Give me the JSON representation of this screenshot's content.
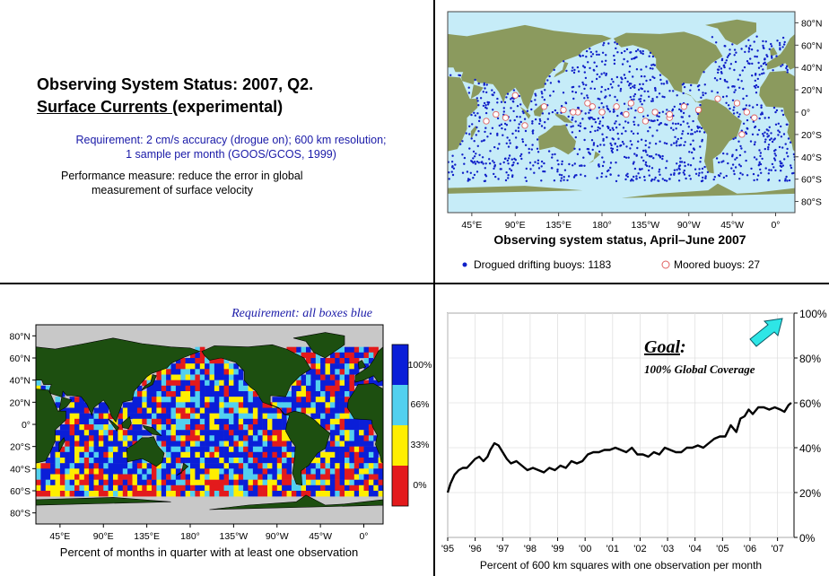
{
  "colors": {
    "ocean": "#c6ecf8",
    "land_map1": "#8b9a5e",
    "land_map2": "#1d4f10",
    "cell_blue": "#0a1ed8",
    "cell_cyan": "#52d0ef",
    "cell_yellow": "#ffee00",
    "cell_red": "#e31a1c",
    "buoy_blue": "#1020c8",
    "moored": "#e06060",
    "arrow": "#2ee6e6"
  },
  "text_panel": {
    "title_line1": "Observing System Status:  2007, Q2.",
    "title_line2_underlined": "Surface Currents ",
    "title_line2_rest": "(experimental)",
    "requirement_line1": "Requirement: 2 cm/s accuracy (drogue on); 600 km resolution;",
    "requirement_line2": "1 sample per month (GOOS/GCOS, 1999)",
    "performance_line1": "Performance measure: reduce the error in global",
    "performance_line2": "measurement of surface velocity"
  },
  "chart_data": [
    {
      "type": "scatter",
      "title": "Observing system status, April–June 2007",
      "x_ticks": [
        "45°E",
        "90°E",
        "135°E",
        "180°",
        "135°W",
        "90°W",
        "45°W",
        "0°"
      ],
      "y_ticks": [
        "80°N",
        "60°N",
        "40°N",
        "20°N",
        "0°",
        "20°S",
        "40°S",
        "60°S",
        "80°S"
      ],
      "legend": [
        {
          "label": "Drogued drifting buoys: 1183",
          "marker": "filled-dot"
        },
        {
          "label": "Moored buoys: 27",
          "marker": "open-circle"
        }
      ],
      "series": [
        {
          "name": "Drogued drifting buoys",
          "count": 1183
        },
        {
          "name": "Moored buoys",
          "count": 27
        }
      ]
    },
    {
      "type": "heatmap",
      "title": "Requirement: all boxes blue",
      "xlabel": "Percent of months in quarter with at least one observation",
      "x_ticks": [
        "45°E",
        "90°E",
        "135°E",
        "180°",
        "135°W",
        "90°W",
        "45°W",
        "0°"
      ],
      "y_ticks": [
        "80°N",
        "60°N",
        "40°N",
        "20°N",
        "0°",
        "20°S",
        "40°S",
        "60°S",
        "80°S"
      ],
      "colorbar": [
        "100%",
        "66%",
        "33%",
        "0%"
      ]
    },
    {
      "type": "line",
      "xlabel": "Percent of 600 km squares with one observation per month",
      "ylabel": "",
      "ylim": [
        0,
        100
      ],
      "xlim": [
        1995,
        2007.6
      ],
      "y_ticks": [
        "0%",
        "20%",
        "40%",
        "60%",
        "80%",
        "100%"
      ],
      "x_ticks": [
        "'95",
        "'96",
        "'97",
        "'98",
        "'99",
        "'00",
        "'01",
        "'02",
        "'03",
        "'04",
        "'05",
        "'06",
        "'07"
      ],
      "annotation_goal": "Goal",
      "annotation_goal_colon": ":",
      "annotation_sub": "100% Global Coverage",
      "series": [
        {
          "x": [
            1995.0,
            1995.1,
            1995.25,
            1995.4,
            1995.55,
            1995.7,
            1995.85,
            1996.0,
            1996.15,
            1996.3,
            1996.45,
            1996.55,
            1996.7,
            1996.85,
            1997.0,
            1997.15,
            1997.3,
            1997.5,
            1997.7,
            1997.9,
            1998.1,
            1998.3,
            1998.5,
            1998.7,
            1998.9,
            1999.1,
            1999.3,
            1999.5,
            1999.7,
            1999.9,
            2000.1,
            2000.3,
            2000.5,
            2000.7,
            2000.9,
            2001.1,
            2001.3,
            2001.5,
            2001.7,
            2001.9,
            2002.1,
            2002.3,
            2002.5,
            2002.7,
            2002.9,
            2003.1,
            2003.3,
            2003.5,
            2003.7,
            2003.9,
            2004.1,
            2004.3,
            2004.5,
            2004.7,
            2004.9,
            2005.1,
            2005.3,
            2005.5,
            2005.65,
            2005.8,
            2005.95,
            2006.1,
            2006.3,
            2006.5,
            2006.7,
            2006.9,
            2007.1,
            2007.25,
            2007.4,
            2007.5
          ],
          "y": [
            20,
            24,
            28,
            30,
            31,
            31,
            33,
            35,
            36,
            34,
            36,
            39,
            42,
            41,
            38,
            35,
            33,
            34,
            32,
            30,
            31,
            30,
            29,
            31,
            30,
            32,
            31,
            34,
            33,
            34,
            37,
            38,
            38,
            39,
            39,
            40,
            39,
            38,
            40,
            37,
            37,
            36,
            38,
            37,
            40,
            39,
            38,
            38,
            40,
            40,
            41,
            40,
            42,
            44,
            45,
            45,
            50,
            47,
            53,
            54,
            57,
            55,
            58,
            58,
            57,
            58,
            57,
            56,
            59,
            60
          ]
        }
      ]
    }
  ]
}
